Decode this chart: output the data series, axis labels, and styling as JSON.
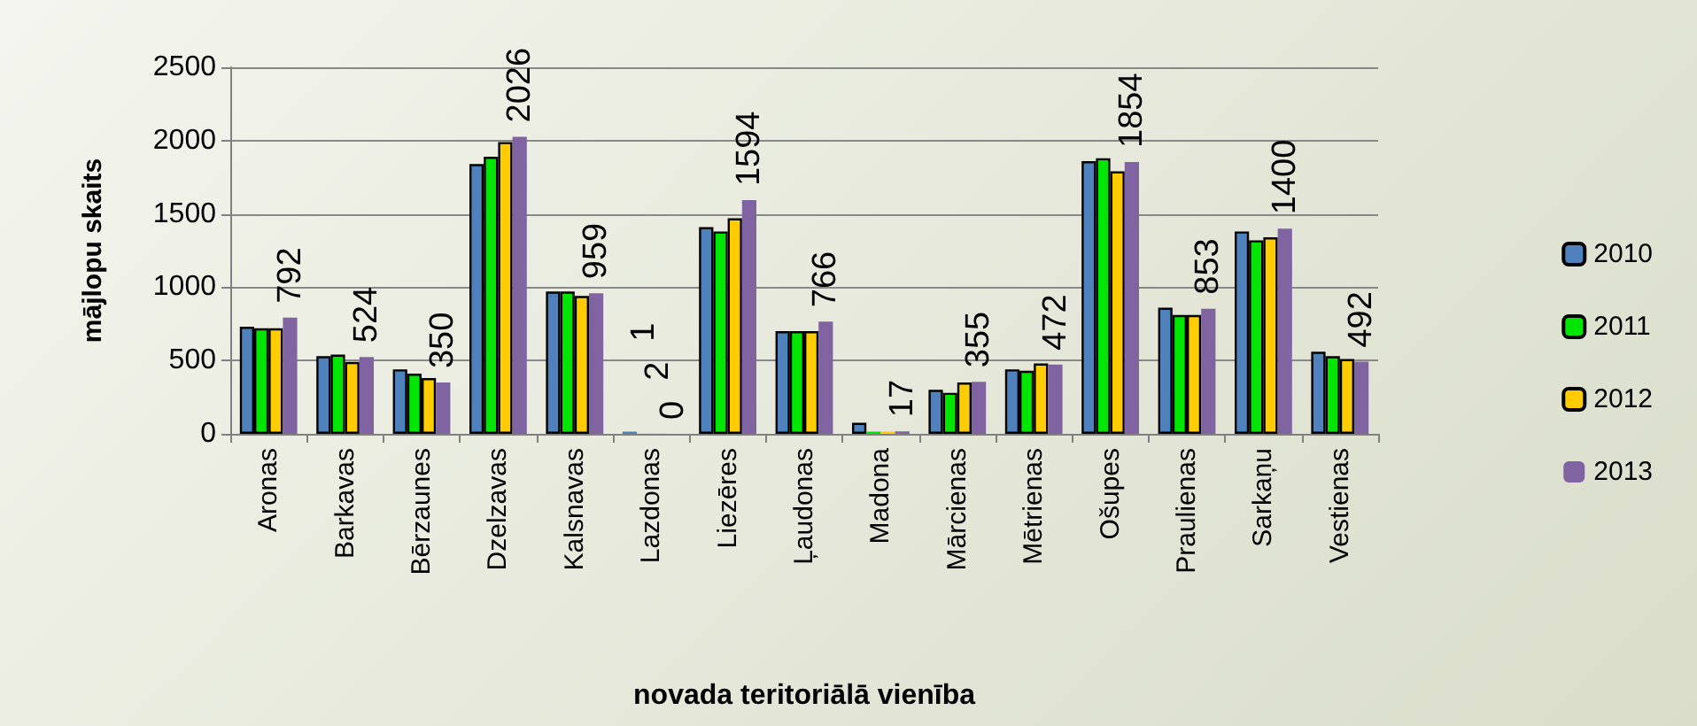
{
  "chart_data": {
    "type": "bar",
    "xlabel": "novada teritoriālā vienība",
    "ylabel": "mājlopu skaits",
    "categories": [
      "Aronas",
      "Barkavas",
      "Bērzaunes",
      "Dzelzavas",
      "Kalsnavas",
      "Lazdonas",
      "Liezēres",
      "Ļaudonas",
      "Madona",
      "Mārcienas",
      "Mētrienas",
      "Ošupes",
      "Praulienas",
      "Sarkaņu",
      "Vestienas"
    ],
    "series": [
      {
        "name": "2010",
        "color": "#4f81bd",
        "values": [
          730,
          530,
          440,
          1840,
          970,
          15,
          1410,
          700,
          75,
          300,
          440,
          1860,
          860,
          1380,
          560
        ]
      },
      {
        "name": "2011",
        "color": "#00e600",
        "values": [
          720,
          540,
          410,
          1890,
          970,
          1,
          1380,
          700,
          15,
          280,
          430,
          1880,
          810,
          1320,
          530
        ],
        "value_labels": [
          null,
          null,
          null,
          null,
          null,
          "1",
          null,
          null,
          null,
          null,
          null,
          null,
          null,
          null,
          null
        ]
      },
      {
        "name": "2012",
        "color": "#ffcc00",
        "values": [
          720,
          490,
          380,
          1990,
          940,
          2,
          1470,
          700,
          15,
          350,
          480,
          1790,
          810,
          1340,
          510
        ],
        "value_labels": [
          null,
          null,
          null,
          null,
          null,
          "2",
          null,
          null,
          null,
          null,
          null,
          null,
          null,
          null,
          null
        ]
      },
      {
        "name": "2013",
        "color": "#8064a2",
        "values": [
          792,
          524,
          350,
          2026,
          959,
          0,
          1594,
          766,
          17,
          355,
          472,
          1854,
          853,
          1400,
          492
        ],
        "value_labels": [
          "792",
          "524",
          "350",
          "2026",
          "959",
          "0",
          "1594",
          "766",
          "17",
          "355",
          "472",
          "1854",
          "853",
          "1400",
          "492"
        ]
      }
    ],
    "ylim": [
      0,
      2500
    ],
    "yticks": [
      0,
      500,
      1000,
      1500,
      2000,
      2500
    ],
    "grid": "y",
    "legend": "right"
  }
}
